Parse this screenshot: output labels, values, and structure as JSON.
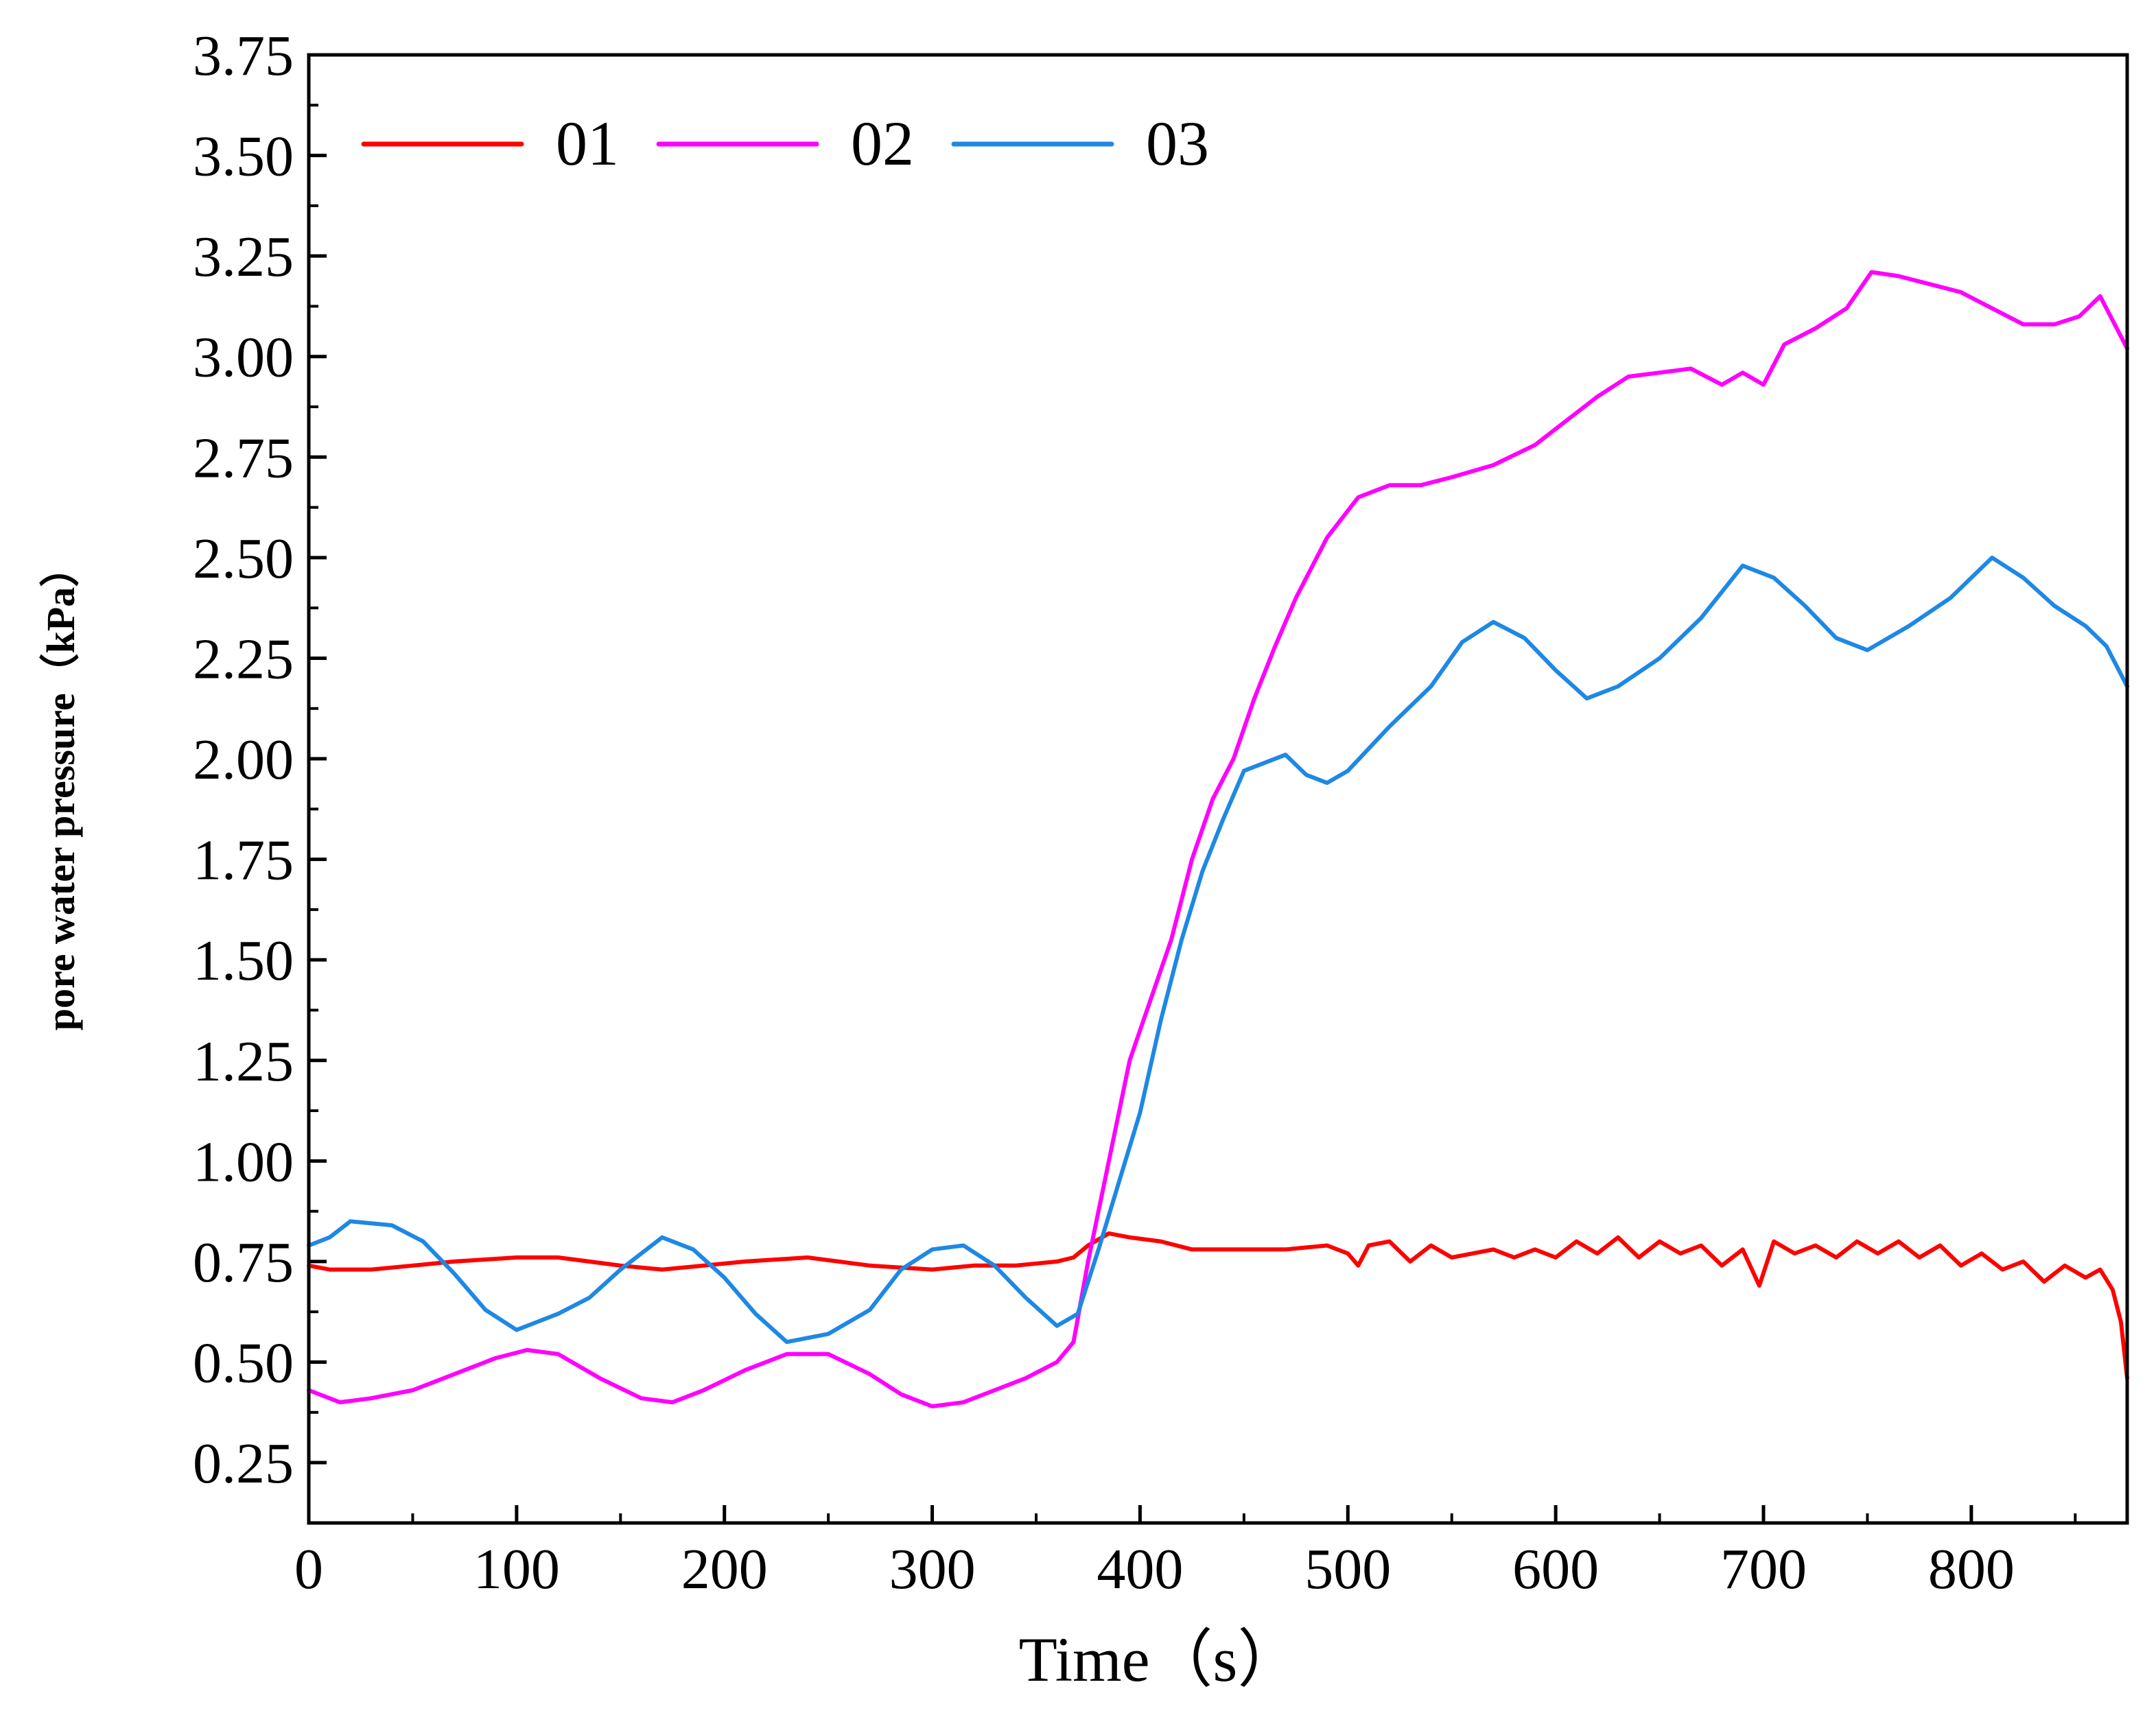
{
  "chart_data": {
    "type": "line",
    "xlabel": "Time（s）",
    "ylabel": "pore water pressure（kPa）",
    "xlim": [
      0,
      875
    ],
    "ylim": [
      0.1,
      3.75
    ],
    "xticks": [
      0,
      100,
      200,
      300,
      400,
      500,
      600,
      700,
      800
    ],
    "xtick_labels": [
      "0",
      "100",
      "200",
      "300",
      "400",
      "500",
      "600",
      "700",
      "800"
    ],
    "yticks": [
      0.25,
      0.5,
      0.75,
      1.0,
      1.25,
      1.5,
      1.75,
      2.0,
      2.25,
      2.5,
      2.75,
      3.0,
      3.25,
      3.5,
      3.75
    ],
    "ytick_labels": [
      "0.25",
      "0.50",
      "0.75",
      "1.00",
      "1.25",
      "1.50",
      "1.75",
      "2.00",
      "2.25",
      "2.50",
      "2.75",
      "3.00",
      "3.25",
      "3.50",
      "3.75"
    ],
    "legend_position": "top-left",
    "grid": false,
    "series": [
      {
        "name": "01",
        "color": "#ff0000",
        "points": [
          [
            0,
            0.74
          ],
          [
            10,
            0.73
          ],
          [
            30,
            0.73
          ],
          [
            50,
            0.74
          ],
          [
            70,
            0.75
          ],
          [
            100,
            0.76
          ],
          [
            120,
            0.76
          ],
          [
            150,
            0.74
          ],
          [
            170,
            0.73
          ],
          [
            190,
            0.74
          ],
          [
            210,
            0.75
          ],
          [
            240,
            0.76
          ],
          [
            270,
            0.74
          ],
          [
            300,
            0.73
          ],
          [
            320,
            0.74
          ],
          [
            340,
            0.74
          ],
          [
            360,
            0.75
          ],
          [
            368,
            0.76
          ],
          [
            375,
            0.79
          ],
          [
            385,
            0.82
          ],
          [
            395,
            0.81
          ],
          [
            410,
            0.8
          ],
          [
            425,
            0.78
          ],
          [
            450,
            0.78
          ],
          [
            470,
            0.78
          ],
          [
            490,
            0.79
          ],
          [
            500,
            0.77
          ],
          [
            505,
            0.74
          ],
          [
            510,
            0.79
          ],
          [
            520,
            0.8
          ],
          [
            530,
            0.75
          ],
          [
            540,
            0.79
          ],
          [
            550,
            0.76
          ],
          [
            560,
            0.77
          ],
          [
            570,
            0.78
          ],
          [
            580,
            0.76
          ],
          [
            590,
            0.78
          ],
          [
            600,
            0.76
          ],
          [
            610,
            0.8
          ],
          [
            620,
            0.77
          ],
          [
            630,
            0.81
          ],
          [
            640,
            0.76
          ],
          [
            650,
            0.8
          ],
          [
            660,
            0.77
          ],
          [
            670,
            0.79
          ],
          [
            680,
            0.74
          ],
          [
            690,
            0.78
          ],
          [
            698,
            0.69
          ],
          [
            705,
            0.8
          ],
          [
            715,
            0.77
          ],
          [
            725,
            0.79
          ],
          [
            735,
            0.76
          ],
          [
            745,
            0.8
          ],
          [
            755,
            0.77
          ],
          [
            765,
            0.8
          ],
          [
            775,
            0.76
          ],
          [
            785,
            0.79
          ],
          [
            795,
            0.74
          ],
          [
            805,
            0.77
          ],
          [
            815,
            0.73
          ],
          [
            825,
            0.75
          ],
          [
            835,
            0.7
          ],
          [
            845,
            0.74
          ],
          [
            855,
            0.71
          ],
          [
            862,
            0.73
          ],
          [
            868,
            0.68
          ],
          [
            872,
            0.6
          ],
          [
            875,
            0.46
          ]
        ]
      },
      {
        "name": "02",
        "color": "#ff00ff",
        "points": [
          [
            0,
            0.43
          ],
          [
            15,
            0.4
          ],
          [
            30,
            0.41
          ],
          [
            50,
            0.43
          ],
          [
            70,
            0.47
          ],
          [
            90,
            0.51
          ],
          [
            105,
            0.53
          ],
          [
            120,
            0.52
          ],
          [
            140,
            0.46
          ],
          [
            160,
            0.41
          ],
          [
            175,
            0.4
          ],
          [
            190,
            0.43
          ],
          [
            210,
            0.48
          ],
          [
            230,
            0.52
          ],
          [
            250,
            0.52
          ],
          [
            270,
            0.47
          ],
          [
            285,
            0.42
          ],
          [
            300,
            0.39
          ],
          [
            315,
            0.4
          ],
          [
            330,
            0.43
          ],
          [
            345,
            0.46
          ],
          [
            360,
            0.5
          ],
          [
            368,
            0.55
          ],
          [
            375,
            0.75
          ],
          [
            385,
            1.0
          ],
          [
            395,
            1.25
          ],
          [
            405,
            1.4
          ],
          [
            415,
            1.55
          ],
          [
            425,
            1.75
          ],
          [
            435,
            1.9
          ],
          [
            445,
            2.0
          ],
          [
            455,
            2.15
          ],
          [
            465,
            2.28
          ],
          [
            475,
            2.4
          ],
          [
            490,
            2.55
          ],
          [
            505,
            2.65
          ],
          [
            520,
            2.68
          ],
          [
            535,
            2.68
          ],
          [
            550,
            2.7
          ],
          [
            570,
            2.73
          ],
          [
            590,
            2.78
          ],
          [
            605,
            2.84
          ],
          [
            620,
            2.9
          ],
          [
            635,
            2.95
          ],
          [
            650,
            2.96
          ],
          [
            665,
            2.97
          ],
          [
            680,
            2.93
          ],
          [
            690,
            2.96
          ],
          [
            700,
            2.93
          ],
          [
            710,
            3.03
          ],
          [
            725,
            3.07
          ],
          [
            740,
            3.12
          ],
          [
            752,
            3.21
          ],
          [
            765,
            3.2
          ],
          [
            780,
            3.18
          ],
          [
            795,
            3.16
          ],
          [
            810,
            3.12
          ],
          [
            825,
            3.08
          ],
          [
            840,
            3.08
          ],
          [
            852,
            3.1
          ],
          [
            862,
            3.15
          ],
          [
            875,
            3.02
          ]
        ]
      },
      {
        "name": "03",
        "color": "#1e88e5",
        "points": [
          [
            0,
            0.79
          ],
          [
            10,
            0.81
          ],
          [
            20,
            0.85
          ],
          [
            40,
            0.84
          ],
          [
            55,
            0.8
          ],
          [
            70,
            0.72
          ],
          [
            85,
            0.63
          ],
          [
            100,
            0.58
          ],
          [
            120,
            0.62
          ],
          [
            135,
            0.66
          ],
          [
            150,
            0.73
          ],
          [
            170,
            0.81
          ],
          [
            185,
            0.78
          ],
          [
            200,
            0.71
          ],
          [
            215,
            0.62
          ],
          [
            230,
            0.55
          ],
          [
            250,
            0.57
          ],
          [
            270,
            0.63
          ],
          [
            285,
            0.73
          ],
          [
            300,
            0.78
          ],
          [
            315,
            0.79
          ],
          [
            330,
            0.74
          ],
          [
            345,
            0.66
          ],
          [
            360,
            0.59
          ],
          [
            370,
            0.62
          ],
          [
            380,
            0.78
          ],
          [
            390,
            0.95
          ],
          [
            400,
            1.12
          ],
          [
            410,
            1.35
          ],
          [
            420,
            1.55
          ],
          [
            430,
            1.72
          ],
          [
            440,
            1.85
          ],
          [
            450,
            1.97
          ],
          [
            470,
            2.01
          ],
          [
            480,
            1.96
          ],
          [
            490,
            1.94
          ],
          [
            500,
            1.97
          ],
          [
            520,
            2.08
          ],
          [
            540,
            2.18
          ],
          [
            555,
            2.29
          ],
          [
            570,
            2.34
          ],
          [
            585,
            2.3
          ],
          [
            600,
            2.22
          ],
          [
            615,
            2.15
          ],
          [
            630,
            2.18
          ],
          [
            650,
            2.25
          ],
          [
            670,
            2.35
          ],
          [
            690,
            2.48
          ],
          [
            705,
            2.45
          ],
          [
            720,
            2.38
          ],
          [
            735,
            2.3
          ],
          [
            750,
            2.27
          ],
          [
            770,
            2.33
          ],
          [
            790,
            2.4
          ],
          [
            810,
            2.5
          ],
          [
            825,
            2.45
          ],
          [
            840,
            2.38
          ],
          [
            855,
            2.33
          ],
          [
            865,
            2.28
          ],
          [
            875,
            2.18
          ]
        ]
      }
    ]
  }
}
